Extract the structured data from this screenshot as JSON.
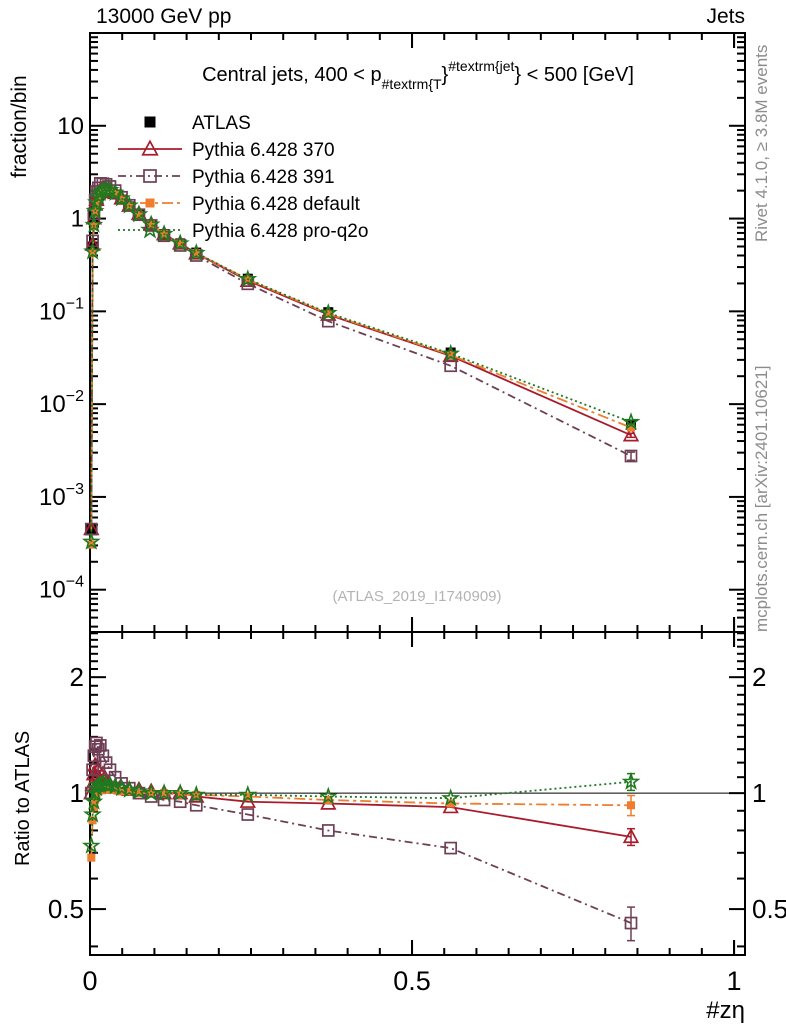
{
  "header": {
    "left": "13000 GeV pp",
    "right": "Jets"
  },
  "side_notes": {
    "top_right": "Rivet 4.1.0, ≥ 3.8M events",
    "bottom_right": "mcplots.cern.ch [arXiv:2401.10621]"
  },
  "watermark": "(ATLAS_2019_I1740909)",
  "chart_data": {
    "type": "line",
    "title_segments": [
      {
        "text": "Central jets, 400 < p",
        "pos": "normal"
      },
      {
        "text": "#textrm{T",
        "pos": "sub"
      },
      {
        "text": "}",
        "pos": "normal"
      },
      {
        "text": "#textrm{jet",
        "pos": "sup"
      },
      {
        "text": "}",
        "pos": "normal"
      },
      {
        "text": " < 500 [GeV]",
        "pos": "normal"
      }
    ],
    "x_axis": {
      "label": "#zη",
      "min": 0,
      "max": 1.017,
      "major_ticks": [
        0,
        0.5,
        1
      ],
      "tick_labels": [
        "0",
        "0.5",
        "1"
      ],
      "minor_step": 0.05
    },
    "main_axis": {
      "ylabel": "fraction/bin",
      "scale": "log",
      "ymin": 3.5e-05,
      "ymax": 100,
      "yticks": [
        {
          "v": 10,
          "base": "10",
          "exp": ""
        },
        {
          "v": 1,
          "base": "1",
          "exp": ""
        },
        {
          "v": 0.1,
          "base": "10",
          "exp": "−1"
        },
        {
          "v": 0.01,
          "base": "10",
          "exp": "−2"
        },
        {
          "v": 0.001,
          "base": "10",
          "exp": "−3"
        },
        {
          "v": 0.0001,
          "base": "10",
          "exp": "−4"
        }
      ]
    },
    "ratio_axis": {
      "ylabel": "Ratio to ATLAS",
      "scale": "log",
      "ymin": 0.38,
      "ymax": 2.62,
      "yticks": [
        {
          "v": 2,
          "label": "2"
        },
        {
          "v": 1,
          "label": "1"
        },
        {
          "v": 0.5,
          "label": "0.5"
        }
      ],
      "reference_line": 1
    },
    "x": [
      0.002,
      0.004,
      0.006,
      0.008,
      0.01,
      0.013,
      0.016,
      0.02,
      0.025,
      0.031,
      0.039,
      0.049,
      0.061,
      0.076,
      0.095,
      0.115,
      0.14,
      0.165,
      0.245,
      0.37,
      0.56,
      0.84
    ],
    "series": [
      {
        "name": "ATLAS",
        "color": "#000000",
        "marker": "square-filled",
        "marker_size": 10,
        "line": "none",
        "is_reference": true,
        "err_frac_last": 0.05,
        "values": [
          0.00045,
          0.5,
          0.9,
          1.2,
          1.45,
          1.65,
          1.8,
          1.9,
          1.95,
          1.93,
          1.82,
          1.6,
          1.35,
          1.1,
          0.86,
          0.68,
          0.54,
          0.43,
          0.225,
          0.098,
          0.036,
          0.006
        ]
      },
      {
        "name": "Pythia 6.428 370",
        "color": "#a81c2c",
        "marker": "triangle-open",
        "marker_size": 13,
        "line": "solid",
        "err_frac_last": 0.05,
        "ratio_to_atlas": [
          1.0,
          1.05,
          1.12,
          1.18,
          1.1,
          1.15,
          1.08,
          1.12,
          1.06,
          1.05,
          1.04,
          1.03,
          1.02,
          1.02,
          1.01,
          1.0,
          1.0,
          0.98,
          0.95,
          0.94,
          0.92,
          0.77
        ]
      },
      {
        "name": "Pythia 6.428 391",
        "color": "#6e3f55",
        "marker": "square-open",
        "marker_size": 11,
        "line": "dashdot",
        "err_frac_last": 0.1,
        "ratio_to_atlas": [
          1.0,
          1.15,
          1.25,
          1.32,
          1.35,
          1.3,
          1.33,
          1.25,
          1.2,
          1.15,
          1.1,
          1.06,
          1.03,
          1.0,
          0.98,
          0.96,
          0.95,
          0.93,
          0.88,
          0.8,
          0.72,
          0.46
        ]
      },
      {
        "name": "Pythia 6.428 default",
        "color": "#ee7d2e",
        "marker": "square-filled",
        "marker_size": 8,
        "line": "longdashdot",
        "err_frac_last": 0.06,
        "ratio_to_atlas": [
          0.68,
          0.85,
          0.92,
          0.96,
          0.99,
          1.01,
          1.02,
          1.02,
          1.02,
          1.02,
          1.02,
          1.01,
          1.01,
          1.0,
          1.0,
          1.0,
          0.99,
          0.99,
          0.98,
          0.96,
          0.94,
          0.93
        ]
      },
      {
        "name": "Pythia 6.428 pro-q2o",
        "color": "#1f7a1f",
        "marker": "star-open",
        "marker_size": 15,
        "line": "dotted",
        "err_frac_last": 0.05,
        "ratio_to_atlas": [
          0.73,
          0.88,
          0.95,
          1.0,
          1.03,
          1.05,
          1.05,
          1.06,
          1.05,
          1.05,
          1.04,
          1.03,
          1.02,
          1.01,
          1.0,
          1.0,
          1.0,
          0.99,
          0.99,
          0.98,
          0.97,
          1.07
        ]
      }
    ],
    "legend_position": "top-left-inside"
  }
}
